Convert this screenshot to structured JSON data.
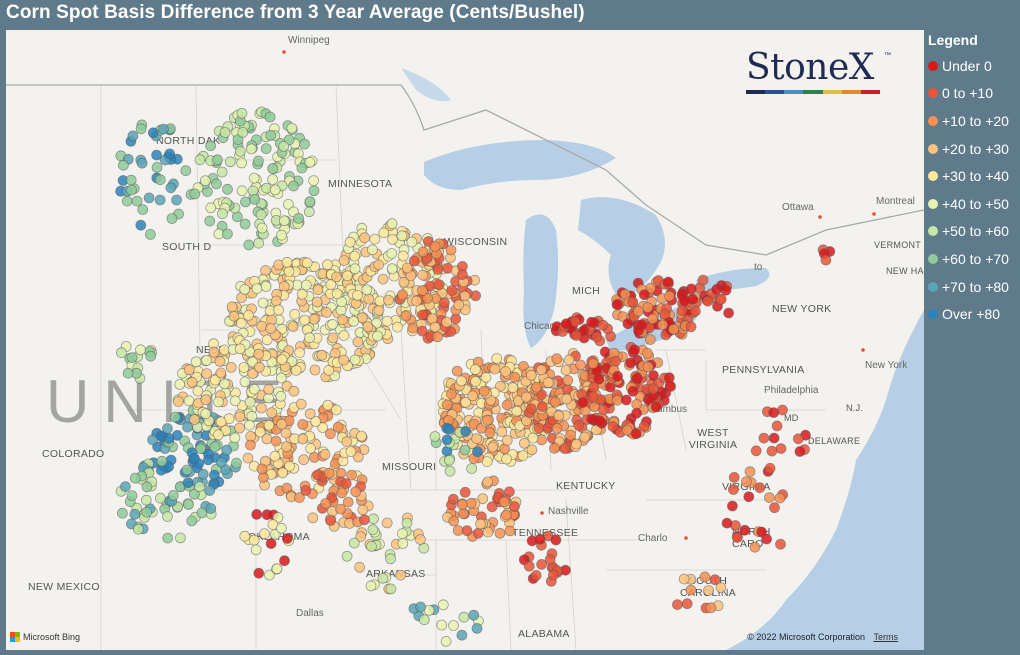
{
  "title": "Corn Spot Basis Difference from 3 Year Average (Cents/Bushel)",
  "logo": {
    "text": "StoneX",
    "tm": "™",
    "bar_colors": [
      "#1f2b55",
      "#2f4f8f",
      "#4f8fbf",
      "#2f7f4f",
      "#e0c040",
      "#e08a2a",
      "#c8202a"
    ]
  },
  "legend": {
    "title": "Legend",
    "items": [
      {
        "label": "Under 0",
        "color": "#d7191c"
      },
      {
        "label": "0 to +10",
        "color": "#e8553a"
      },
      {
        "label": "+10 to +20",
        "color": "#f59053"
      },
      {
        "label": "+20 to +30",
        "color": "#fdc27d"
      },
      {
        "label": "+30 to +40",
        "color": "#fee99d"
      },
      {
        "label": "+40 to +50",
        "color": "#e9f3b0"
      },
      {
        "label": "+50 to +60",
        "color": "#c6e6a4"
      },
      {
        "label": "+60 to +70",
        "color": "#8fcb9a"
      },
      {
        "label": "+70 to +80",
        "color": "#5aa5b6"
      },
      {
        "label": "Over +80",
        "color": "#2b83ba"
      }
    ]
  },
  "map_labels": {
    "winnipeg": "Winnipeg",
    "north_dakota": "NORTH DAK",
    "minnesota": "MINNESOTA",
    "south_dakota": "SOUTH D",
    "nebraska": "NEBR",
    "wisconsin": "WISCONSIN",
    "michigan": "MICH",
    "chicago": "Chicago",
    "ottawa": "Ottawa",
    "montreal": "Montreal",
    "vermont": "VERMONT",
    "new_hampshire": "NEW HAMPSH",
    "toronto": "to",
    "new_york_state": "NEW YORK",
    "pennsylvania": "PENNSYLVANIA",
    "new_york_city": "New York",
    "philadelphia": "Philadelphia",
    "nj": "N.J.",
    "md": "MD",
    "delaware": "DELAWARE",
    "columbus": "Columbus",
    "west_virginia": "WEST VIRGINIA",
    "virginia": "VIRGINIA",
    "colorado": "COLORADO",
    "missouri": "MISSOURI",
    "kentucky": "KENTUCKY",
    "nashville": "Nashville",
    "tennessee": "TENNESSEE",
    "charlotte": "Charlo",
    "north_carolina": "NORTH CARO",
    "south_carolina": "SOUTH CAROLINA",
    "oklahoma": "OKLAHOMA",
    "arkansas": "ARKANSAS",
    "new_mexico": "NEW MEXICO",
    "dallas": "Dallas",
    "alabama": "ALABAMA",
    "united_states": "UNITE"
  },
  "attribution": {
    "bing": "Microsoft Bing",
    "copyright": "© 2022 Microsoft Corporation",
    "terms": "Terms"
  }
}
